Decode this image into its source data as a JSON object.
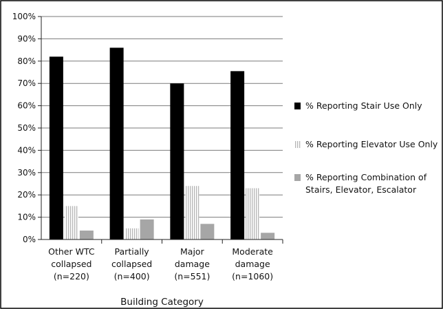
{
  "chart_data": {
    "type": "bar",
    "title": "",
    "xlabel": "Building Category",
    "ylabel": "",
    "ylim": [
      0,
      100
    ],
    "yticks": [
      "0%",
      "10%",
      "20%",
      "30%",
      "40%",
      "50%",
      "60%",
      "70%",
      "80%",
      "90%",
      "100%"
    ],
    "grid": true,
    "legend_position": "right",
    "categories": [
      [
        "Other WTC",
        "collapsed",
        "(n=220)"
      ],
      [
        "Partially",
        "collapsed",
        "(n=400)"
      ],
      [
        "Major",
        "damage",
        "(n=551)"
      ],
      [
        "Moderate",
        "damage",
        "(n=1060)"
      ]
    ],
    "series": [
      {
        "name": "% Reporting Stair Use Only",
        "style": "solid",
        "color": "#000000",
        "values": [
          82,
          86,
          70,
          75.5
        ]
      },
      {
        "name": "% Reporting Elevator Use Only",
        "style": "vertical-stripes",
        "color": "#bdbdbd",
        "values": [
          15,
          5,
          24,
          23
        ]
      },
      {
        "name": [
          "% Reporting Combination of",
          "Stairs, Elevator, Escalator"
        ],
        "style": "solid",
        "color": "#a6a6a6",
        "values": [
          4,
          9,
          7,
          3
        ]
      }
    ]
  }
}
